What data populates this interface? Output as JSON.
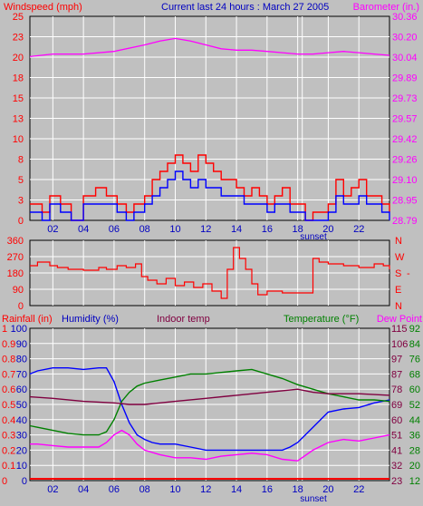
{
  "colors": {
    "background": "#c0c0c0",
    "plot": "#c0c0c0",
    "grid": "#ffffff",
    "wind_gust": "#ff0000",
    "wind_avg": "#0000ff",
    "barometer": "#ff00ff",
    "direction": "#ff0000",
    "humidity": "#0000ff",
    "indoor": "#800040",
    "temperature": "#008000",
    "dewpoint": "#ff00ff",
    "rainfall": "#ff0000",
    "label_red": "#ff0000",
    "label_blue": "#0000c0",
    "label_green": "#008000",
    "label_magenta": "#ff00ff",
    "label_maroon": "#800040"
  },
  "chart_data": [
    {
      "type": "line",
      "title": "Current last 24 hours : March 27 2005",
      "left_axis_title": "Windspeed (mph)",
      "right_axis_title": "Barometer (in.)",
      "left_ticks": [
        "0",
        "3",
        "5",
        "8",
        "10",
        "13",
        "15",
        "18",
        "20",
        "23",
        "25"
      ],
      "right_ticks": [
        "28.79",
        "28.95",
        "29.10",
        "29.26",
        "29.42",
        "29.57",
        "29.73",
        "29.89",
        "30.04",
        "30.20",
        "30.36"
      ],
      "x_ticks": [
        "02",
        "04",
        "06",
        "08",
        "10",
        "12",
        "14",
        "16",
        "18",
        "20",
        "22"
      ],
      "sunset_label": "sunset",
      "x_range": [
        0.5,
        24
      ],
      "sunset_hour": 18.3,
      "left_range": [
        0,
        25
      ],
      "right_range": [
        28.79,
        30.36
      ],
      "grid": true,
      "series": [
        {
          "name": "gust",
          "axis": "left",
          "style": "step",
          "x": [
            0.5,
            1.3,
            1.8,
            2.5,
            3.2,
            4.0,
            4.8,
            5.5,
            6.2,
            6.8,
            7.3,
            8.0,
            8.5,
            9.0,
            9.5,
            10.0,
            10.5,
            11.0,
            11.5,
            12.0,
            12.5,
            13.0,
            13.5,
            14.0,
            14.5,
            15.0,
            15.5,
            16.0,
            16.5,
            17.0,
            17.5,
            18.0,
            18.5,
            19.0,
            19.5,
            20.0,
            20.5,
            21.0,
            21.5,
            22.0,
            22.5,
            23.0,
            23.5,
            24.0
          ],
          "y": [
            2,
            1,
            3,
            2,
            0,
            3,
            4,
            3,
            2,
            1,
            2,
            3,
            5,
            6,
            7,
            8,
            7,
            6,
            8,
            7,
            6,
            5,
            5,
            4,
            3,
            4,
            3,
            2,
            3,
            4,
            2,
            2,
            0,
            1,
            1,
            2,
            5,
            3,
            4,
            5,
            3,
            3,
            2,
            1
          ]
        },
        {
          "name": "average",
          "axis": "left",
          "style": "step",
          "x": [
            0.5,
            1.3,
            1.8,
            2.5,
            3.2,
            4.0,
            4.8,
            5.5,
            6.2,
            6.8,
            7.3,
            8.0,
            8.5,
            9.0,
            9.5,
            10.0,
            10.5,
            11.0,
            11.5,
            12.0,
            12.5,
            13.0,
            13.5,
            14.0,
            14.5,
            15.0,
            15.5,
            16.0,
            16.5,
            17.0,
            17.5,
            18.0,
            18.5,
            19.0,
            19.5,
            20.0,
            20.5,
            21.0,
            21.5,
            22.0,
            22.5,
            23.0,
            23.5,
            24.0
          ],
          "y": [
            1,
            0,
            2,
            1,
            0,
            2,
            2,
            2,
            1,
            0,
            1,
            2,
            3,
            4,
            5,
            6,
            5,
            4,
            5,
            4,
            4,
            3,
            3,
            3,
            2,
            2,
            2,
            1,
            2,
            2,
            1,
            1,
            0,
            0,
            0,
            1,
            3,
            2,
            2,
            3,
            2,
            2,
            1,
            0
          ]
        },
        {
          "name": "barometer",
          "axis": "right",
          "style": "line",
          "x": [
            0.5,
            2,
            4,
            6,
            8,
            9,
            10,
            11,
            12,
            13,
            14,
            15,
            16,
            17,
            18,
            19,
            20,
            21,
            22,
            23,
            24
          ],
          "y": [
            30.05,
            30.07,
            30.07,
            30.09,
            30.14,
            30.17,
            30.19,
            30.17,
            30.14,
            30.11,
            30.1,
            30.1,
            30.09,
            30.08,
            30.07,
            30.07,
            30.08,
            30.09,
            30.08,
            30.07,
            30.06
          ]
        }
      ]
    },
    {
      "type": "line",
      "left_ticks": [
        "0",
        "90",
        "180",
        "270",
        "360"
      ],
      "right_ticks": [
        "N",
        "E",
        "S",
        "W",
        "N"
      ],
      "right_extra": "-",
      "y_range": [
        0,
        360
      ],
      "series": [
        {
          "name": "direction",
          "style": "step",
          "x": [
            0.5,
            1.0,
            1.8,
            2.3,
            3.0,
            4.0,
            5.0,
            5.5,
            6.2,
            6.8,
            7.4,
            7.8,
            8.2,
            8.8,
            9.4,
            10.0,
            10.6,
            11.2,
            11.8,
            12.4,
            13.0,
            13.4,
            13.8,
            14.2,
            14.6,
            15.0,
            15.4,
            16.0,
            17.0,
            18.0,
            18.6,
            19.0,
            19.4,
            20.0,
            21.0,
            22.0,
            23.0,
            23.6,
            24.0
          ],
          "y": [
            220,
            240,
            220,
            210,
            200,
            195,
            210,
            200,
            220,
            210,
            230,
            160,
            140,
            120,
            150,
            110,
            130,
            100,
            120,
            80,
            40,
            200,
            320,
            260,
            200,
            120,
            60,
            80,
            70,
            70,
            70,
            260,
            240,
            230,
            220,
            210,
            230,
            220,
            200
          ]
        }
      ]
    },
    {
      "type": "line",
      "rain_label": "Rainfall (in)",
      "humidity_label": "Humidity (%)",
      "indoor_label": "Indoor temp",
      "temperature_label": "Temperature (°F)",
      "dewpoint_label": "Dew Point",
      "left_ticks_rain": [
        "0",
        "0.1",
        "0.2",
        "0.3",
        "0.4",
        "0.5",
        "0.6",
        "0.7",
        "0.8",
        "0.9",
        "1"
      ],
      "left_ticks_hum": [
        "0",
        "10",
        "20",
        "30",
        "40",
        "50",
        "60",
        "70",
        "80",
        "90",
        "100"
      ],
      "right_ticks_indoor": [
        "23",
        "32",
        "41",
        "51",
        "60",
        "69",
        "78",
        "87",
        "97",
        "106",
        "115"
      ],
      "right_ticks_temp": [
        "12",
        "20",
        "28",
        "36",
        "44",
        "52",
        "60",
        "68",
        "76",
        "84",
        "92"
      ],
      "x_ticks": [
        "02",
        "04",
        "06",
        "08",
        "10",
        "12",
        "14",
        "16",
        "18",
        "20",
        "22"
      ],
      "sunset_label": "sunset",
      "humidity_range": [
        0,
        100
      ],
      "grid": true,
      "series": [
        {
          "name": "humidity",
          "x": [
            0.5,
            1,
            2,
            3,
            4,
            5,
            5.5,
            6,
            6.5,
            7,
            7.5,
            8,
            8.5,
            9,
            10,
            11,
            12,
            13,
            14,
            15,
            16,
            17,
            17.5,
            18,
            18.5,
            19,
            19.5,
            20,
            21,
            22,
            23,
            24
          ],
          "y": [
            70,
            72,
            74,
            74,
            73,
            74,
            74,
            65,
            50,
            38,
            30,
            27,
            25,
            24,
            24,
            22,
            20,
            20,
            20,
            20,
            20,
            20,
            22,
            25,
            30,
            35,
            40,
            45,
            47,
            48,
            51,
            53
          ]
        },
        {
          "name": "temperature",
          "x": [
            0.5,
            1,
            2,
            3,
            4,
            5,
            5.5,
            6,
            6.5,
            7,
            7.5,
            8,
            9,
            10,
            11,
            12,
            13,
            14,
            15,
            16,
            17,
            18,
            19,
            20,
            21,
            22,
            23,
            24
          ],
          "y": [
            36,
            35,
            33,
            31,
            30,
            30,
            32,
            40,
            52,
            58,
            62,
            64,
            66,
            68,
            70,
            70,
            71,
            72,
            73,
            70,
            67,
            63,
            60,
            57,
            55,
            53,
            53,
            52
          ]
        },
        {
          "name": "indoor",
          "x": [
            0.5,
            2,
            4,
            6,
            7,
            8,
            9,
            10,
            12,
            14,
            16,
            17,
            18,
            19,
            20,
            22,
            24
          ],
          "y": [
            55,
            54,
            52,
            51,
            50,
            50,
            51,
            52,
            54,
            56,
            58,
            59,
            60,
            58,
            57,
            57,
            56
          ]
        },
        {
          "name": "dewpoint",
          "x": [
            0.5,
            1,
            2,
            3,
            4,
            5,
            5.5,
            6,
            6.5,
            7,
            7.5,
            8,
            9,
            10,
            11,
            12,
            13,
            14,
            15,
            16,
            17,
            18,
            19,
            20,
            21,
            22,
            23,
            24
          ],
          "y": [
            24,
            24,
            23,
            22,
            22,
            22,
            25,
            30,
            33,
            30,
            24,
            20,
            17,
            15,
            15,
            14,
            16,
            17,
            18,
            17,
            14,
            13,
            20,
            25,
            27,
            26,
            28,
            30
          ]
        },
        {
          "name": "rainfall",
          "x": [
            0.5,
            24
          ],
          "y": [
            0,
            0
          ]
        }
      ]
    }
  ]
}
